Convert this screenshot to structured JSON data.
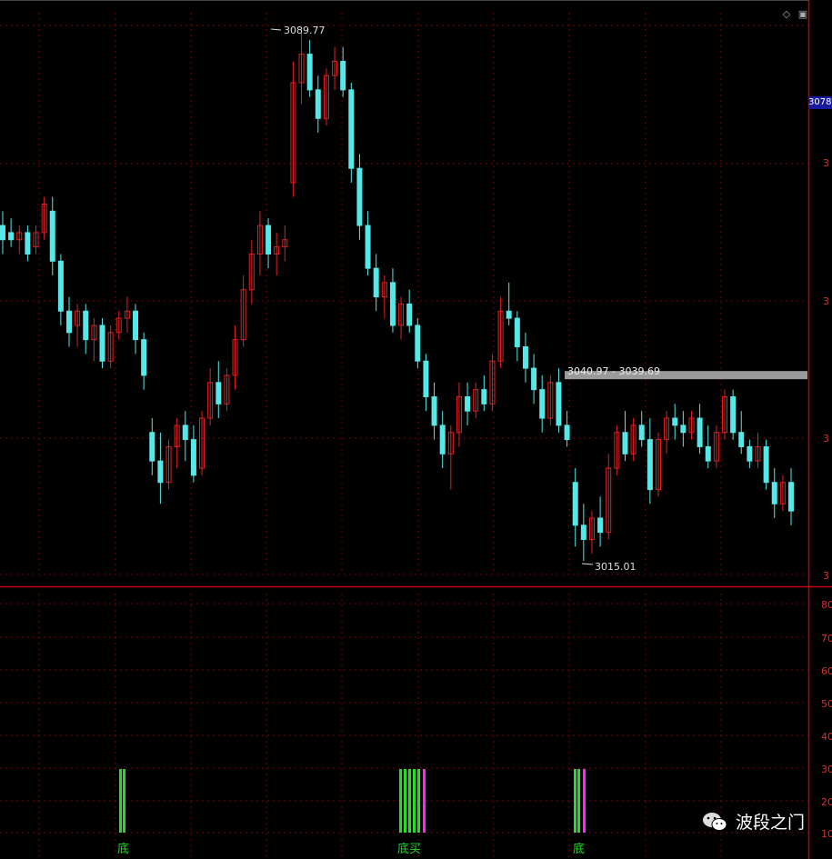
{
  "toolbar": {
    "diamond_icon": "diamond-icon",
    "window_icon": "window-icon"
  },
  "price_tag": "3078",
  "annotations": {
    "high": "3089.77",
    "low": "3015.01",
    "range": "3040.97 - 3039.69"
  },
  "right_axis_main": [
    "3",
    "3",
    "3",
    "3"
  ],
  "right_axis_sub": [
    "80",
    "70",
    "60",
    "50",
    "40",
    "30",
    "20",
    "10"
  ],
  "signals": [
    {
      "label": "底"
    },
    {
      "label": "底买"
    },
    {
      "label": "底"
    }
  ],
  "watermark": {
    "text": "波段之门"
  },
  "colors": {
    "up": "#e02020",
    "down": "#55e8e8",
    "grid": "#7a0000",
    "border": "#c00000",
    "signal_green": "#22dd22",
    "signal_magenta": "#ff22ff",
    "range_bar": "#9a9a9a"
  },
  "chart_data": {
    "type": "candlestick",
    "y_high": 3089.77,
    "y_low": 3015.01,
    "range_band": [
      3039.69,
      3040.97
    ],
    "series": [
      {
        "ohlc": [
          3062,
          3064,
          3058,
          3060
        ]
      },
      {
        "ohlc": [
          3061,
          3063,
          3059,
          3060
        ]
      },
      {
        "ohlc": [
          3060,
          3062,
          3058,
          3061
        ]
      },
      {
        "ohlc": [
          3061,
          3062,
          3057,
          3058
        ]
      },
      {
        "ohlc": [
          3059,
          3062,
          3058,
          3061
        ]
      },
      {
        "ohlc": [
          3061,
          3066,
          3060,
          3065
        ]
      },
      {
        "ohlc": [
          3064,
          3066,
          3055,
          3057
        ]
      },
      {
        "ohlc": [
          3057,
          3058,
          3048,
          3050
        ]
      },
      {
        "ohlc": [
          3050,
          3052,
          3045,
          3047
        ]
      },
      {
        "ohlc": [
          3048,
          3051,
          3045,
          3050
        ]
      },
      {
        "ohlc": [
          3050,
          3051,
          3044,
          3046
        ]
      },
      {
        "ohlc": [
          3046,
          3049,
          3043,
          3048
        ]
      },
      {
        "ohlc": [
          3048,
          3049,
          3042,
          3043
        ]
      },
      {
        "ohlc": [
          3043,
          3048,
          3042,
          3047
        ]
      },
      {
        "ohlc": [
          3047,
          3050,
          3046,
          3049
        ]
      },
      {
        "ohlc": [
          3049,
          3052,
          3047,
          3050
        ]
      },
      {
        "ohlc": [
          3050,
          3051,
          3044,
          3046
        ]
      },
      {
        "ohlc": [
          3046,
          3047,
          3039,
          3041
        ]
      },
      {
        "ohlc": [
          3033,
          3035,
          3027,
          3029
        ]
      },
      {
        "ohlc": [
          3029,
          3033,
          3023,
          3026
        ]
      },
      {
        "ohlc": [
          3026,
          3032,
          3025,
          3031
        ]
      },
      {
        "ohlc": [
          3031,
          3035,
          3028,
          3034
        ]
      },
      {
        "ohlc": [
          3034,
          3036,
          3029,
          3032
        ]
      },
      {
        "ohlc": [
          3032,
          3034,
          3026,
          3027
        ]
      },
      {
        "ohlc": [
          3028,
          3036,
          3027,
          3035
        ]
      },
      {
        "ohlc": [
          3035,
          3042,
          3034,
          3040
        ]
      },
      {
        "ohlc": [
          3040,
          3043,
          3035,
          3037
        ]
      },
      {
        "ohlc": [
          3037,
          3042,
          3036,
          3041
        ]
      },
      {
        "ohlc": [
          3041,
          3048,
          3039,
          3046
        ]
      },
      {
        "ohlc": [
          3046,
          3055,
          3045,
          3053
        ]
      },
      {
        "ohlc": [
          3053,
          3060,
          3051,
          3058
        ]
      },
      {
        "ohlc": [
          3058,
          3064,
          3055,
          3062
        ]
      },
      {
        "ohlc": [
          3062,
          3063,
          3056,
          3058
        ]
      },
      {
        "ohlc": [
          3058,
          3061,
          3055,
          3059
        ]
      },
      {
        "ohlc": [
          3059,
          3062,
          3057,
          3060
        ]
      },
      {
        "ohlc": [
          3068,
          3085,
          3066,
          3082
        ]
      },
      {
        "ohlc": [
          3082,
          3089.77,
          3079,
          3086
        ]
      },
      {
        "ohlc": [
          3086,
          3088,
          3080,
          3081
        ]
      },
      {
        "ohlc": [
          3081,
          3083,
          3075,
          3077
        ]
      },
      {
        "ohlc": [
          3077,
          3084,
          3076,
          3083
        ]
      },
      {
        "ohlc": [
          3083,
          3087,
          3081,
          3085
        ]
      },
      {
        "ohlc": [
          3085,
          3087,
          3080,
          3081
        ]
      },
      {
        "ohlc": [
          3081,
          3082,
          3068,
          3070
        ]
      },
      {
        "ohlc": [
          3070,
          3072,
          3060,
          3062
        ]
      },
      {
        "ohlc": [
          3062,
          3064,
          3055,
          3056
        ]
      },
      {
        "ohlc": [
          3056,
          3058,
          3050,
          3052
        ]
      },
      {
        "ohlc": [
          3052,
          3055,
          3049,
          3054
        ]
      },
      {
        "ohlc": [
          3054,
          3056,
          3047,
          3048
        ]
      },
      {
        "ohlc": [
          3048,
          3052,
          3046,
          3051
        ]
      },
      {
        "ohlc": [
          3051,
          3053,
          3047,
          3048
        ]
      },
      {
        "ohlc": [
          3048,
          3049,
          3042,
          3043
        ]
      },
      {
        "ohlc": [
          3043,
          3044,
          3036,
          3038
        ]
      },
      {
        "ohlc": [
          3038,
          3040,
          3032,
          3034
        ]
      },
      {
        "ohlc": [
          3034,
          3036,
          3028,
          3030
        ]
      },
      {
        "ohlc": [
          3030,
          3034,
          3025,
          3033
        ]
      },
      {
        "ohlc": [
          3033,
          3040,
          3031,
          3038
        ]
      },
      {
        "ohlc": [
          3038,
          3040,
          3034,
          3036
        ]
      },
      {
        "ohlc": [
          3036,
          3040,
          3035,
          3039
        ]
      },
      {
        "ohlc": [
          3039,
          3041,
          3036,
          3037
        ]
      },
      {
        "ohlc": [
          3037,
          3044,
          3036,
          3043
        ]
      },
      {
        "ohlc": [
          3043,
          3052,
          3042,
          3050
        ]
      },
      {
        "ohlc": [
          3050,
          3054,
          3048,
          3049
        ]
      },
      {
        "ohlc": [
          3049,
          3050,
          3043,
          3045
        ]
      },
      {
        "ohlc": [
          3045,
          3047,
          3040,
          3042
        ]
      },
      {
        "ohlc": [
          3042,
          3044,
          3037,
          3039
        ]
      },
      {
        "ohlc": [
          3039,
          3041,
          3033,
          3035
        ]
      },
      {
        "ohlc": [
          3035,
          3041,
          3034,
          3040
        ]
      },
      {
        "ohlc": [
          3040,
          3042,
          3033,
          3034
        ]
      },
      {
        "ohlc": [
          3034,
          3036,
          3031,
          3032
        ]
      },
      {
        "ohlc": [
          3026,
          3028,
          3017,
          3020
        ]
      },
      {
        "ohlc": [
          3020,
          3023,
          3015.01,
          3018
        ]
      },
      {
        "ohlc": [
          3018,
          3022,
          3016,
          3021
        ]
      },
      {
        "ohlc": [
          3021,
          3024,
          3017,
          3019
        ]
      },
      {
        "ohlc": [
          3019,
          3030,
          3018,
          3028
        ]
      },
      {
        "ohlc": [
          3028,
          3034,
          3027,
          3033
        ]
      },
      {
        "ohlc": [
          3033,
          3036,
          3029,
          3030
        ]
      },
      {
        "ohlc": [
          3030,
          3035,
          3029,
          3034
        ]
      },
      {
        "ohlc": [
          3034,
          3036,
          3031,
          3032
        ]
      },
      {
        "ohlc": [
          3032,
          3035,
          3023,
          3025
        ]
      },
      {
        "ohlc": [
          3025,
          3033,
          3024,
          3032
        ]
      },
      {
        "ohlc": [
          3032,
          3036,
          3030,
          3035
        ]
      },
      {
        "ohlc": [
          3035,
          3037,
          3032,
          3034
        ]
      },
      {
        "ohlc": [
          3034,
          3036,
          3031,
          3033
        ]
      },
      {
        "ohlc": [
          3033,
          3036,
          3032,
          3035
        ]
      },
      {
        "ohlc": [
          3035,
          3037,
          3030,
          3031
        ]
      },
      {
        "ohlc": [
          3031,
          3034,
          3028,
          3029
        ]
      },
      {
        "ohlc": [
          3029,
          3034,
          3028,
          3033
        ]
      },
      {
        "ohlc": [
          3033,
          3039,
          3032,
          3038
        ]
      },
      {
        "ohlc": [
          3038,
          3039,
          3032,
          3033
        ]
      },
      {
        "ohlc": [
          3033,
          3036,
          3030,
          3031
        ]
      },
      {
        "ohlc": [
          3031,
          3032,
          3028,
          3029
        ]
      },
      {
        "ohlc": [
          3029,
          3033,
          3028,
          3031
        ]
      },
      {
        "ohlc": [
          3031,
          3032,
          3025,
          3026
        ]
      },
      {
        "ohlc": [
          3026,
          3028,
          3021,
          3023
        ]
      },
      {
        "ohlc": [
          3023,
          3027,
          3022,
          3026
        ]
      },
      {
        "ohlc": [
          3026,
          3028,
          3020,
          3022
        ]
      }
    ],
    "signal_bars": [
      {
        "index": 0,
        "color": "green"
      },
      {
        "index": 1,
        "color": "green"
      },
      {
        "index": 2,
        "color": "green"
      },
      {
        "index": 3,
        "color": "green"
      },
      {
        "index": 4,
        "color": "green"
      },
      {
        "index": 5,
        "color": "green"
      },
      {
        "index": 6,
        "color": "green"
      },
      {
        "index": 7,
        "color": "magenta"
      },
      {
        "index": 8,
        "color": "green"
      },
      {
        "index": 9,
        "color": "green"
      },
      {
        "index": 10,
        "color": "magenta"
      }
    ]
  }
}
